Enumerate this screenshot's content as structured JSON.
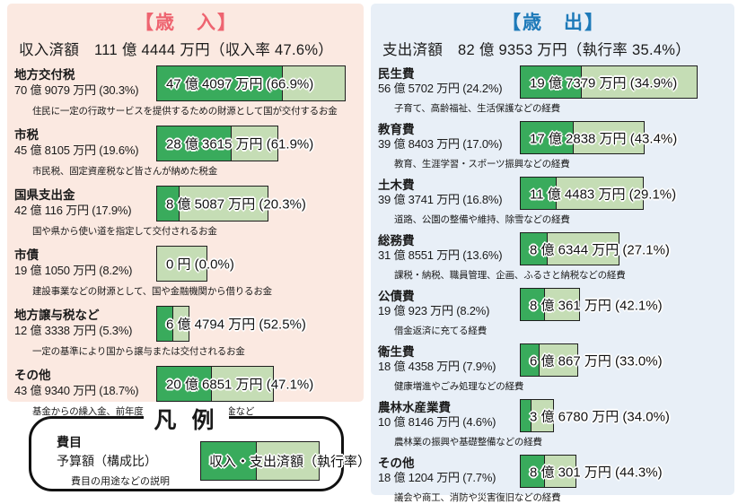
{
  "colors": {
    "revenue_bg": "#fbe9e1",
    "expenditure_bg": "#e8eff7",
    "revenue_title": "#ee6470",
    "expenditure_title": "#1e7ab9",
    "bar_fill": "#39ab5c",
    "bar_rest": "#c5ddb5"
  },
  "revenue": {
    "title": "【歳　入】",
    "summary": "収入済額　111 億 4444 万円（収入率 47.6%）",
    "max_budget_oku": 70.9079,
    "items": [
      {
        "label": "地方交付税",
        "amount": "70 億 9079 万円 (30.3%)",
        "budget_oku": 70.9079,
        "bar_label": "47 億 4097 万円 (66.9%)",
        "rate_pct": 66.9,
        "desc": "住民に一定の行政サービスを提供するための財源として国が交付するお金"
      },
      {
        "label": "市税",
        "amount": "45 億 8105 万円 (19.6%)",
        "budget_oku": 45.8105,
        "bar_label": "28 億 3615 万円 (61.9%)",
        "rate_pct": 61.9,
        "desc": "市民税、固定資産税など皆さんが納めた税金"
      },
      {
        "label": "国県支出金",
        "amount": "42 億 116 万円 (17.9%)",
        "budget_oku": 42.0116,
        "bar_label": "8 億 5087 万円 (20.3%)",
        "rate_pct": 20.3,
        "desc": "国や県から使い道を指定して交付されるお金"
      },
      {
        "label": "市債",
        "amount": "19 億 1050 万円 (8.2%)",
        "budget_oku": 19.105,
        "bar_label": "0 円 (0.0%)",
        "rate_pct": 0,
        "desc": "建設事業などの財源として、国や金融機関から借りるお金"
      },
      {
        "label": "地方譲与税など",
        "amount": "12 億 3338 万円 (5.3%)",
        "budget_oku": 12.3338,
        "bar_label": "6 億 4794 万円 (52.5%)",
        "rate_pct": 52.5,
        "desc": "一定の基準により国から譲与または交付されるお金"
      },
      {
        "label": "その他",
        "amount": "43 億 9340 万円 (18.7%)",
        "budget_oku": 43.934,
        "bar_label": "20 億 6851 万円 (47.1%)",
        "rate_pct": 47.1,
        "desc": "基金からの繰入金、前年度からの繰越金、寄附金など"
      }
    ]
  },
  "expenditure": {
    "title": "【歳　出】",
    "summary": "支出済額　82 億 9353 万円（執行率 35.4%）",
    "max_budget_oku": 56.5702,
    "items": [
      {
        "label": "民生費",
        "amount": "56 億 5702 万円 (24.2%)",
        "budget_oku": 56.5702,
        "bar_label": "19 億 7379 万円 (34.9%)",
        "rate_pct": 34.9,
        "desc": "子育て、高齢福祉、生活保護などの経費"
      },
      {
        "label": "教育費",
        "amount": "39 億 8403 万円 (17.0%)",
        "budget_oku": 39.8403,
        "bar_label": "17 億 2838 万円 (43.4%)",
        "rate_pct": 43.4,
        "desc": "教育、生涯学習・スポーツ振興などの経費"
      },
      {
        "label": "土木費",
        "amount": "39 億 3741 万円 (16.8%)",
        "budget_oku": 39.3741,
        "bar_label": "11 億 4483 万円 (29.1%)",
        "rate_pct": 29.1,
        "desc": "道路、公園の整備や維持、除雪などの経費"
      },
      {
        "label": "総務費",
        "amount": "31 億 8551 万円 (13.6%)",
        "budget_oku": 31.8551,
        "bar_label": "8 億 6344 万円 (27.1%)",
        "rate_pct": 27.1,
        "desc": "課税・納税、職員管理、企画、ふるさと納税などの経費"
      },
      {
        "label": "公債費",
        "amount": "19 億 923 万円 (8.2%)",
        "budget_oku": 19.0923,
        "bar_label": "8 億 361 万円 (42.1%)",
        "rate_pct": 42.1,
        "desc": "借金返済に充てる経費"
      },
      {
        "label": "衛生費",
        "amount": "18 億 4358 万円 (7.9%)",
        "budget_oku": 18.4358,
        "bar_label": "6 億 867 万円 (33.0%)",
        "rate_pct": 33.0,
        "desc": "健康増進やごみ処理などの経費"
      },
      {
        "label": "農林水産業費",
        "amount": "10 億 8146 万円 (4.6%)",
        "budget_oku": 10.8146,
        "bar_label": "3 億 6780 万円 (34.0%)",
        "rate_pct": 34.0,
        "desc": "農林業の振興や基礎整備などの経費"
      },
      {
        "label": "その他",
        "amount": "18 億 1204 万円 (7.7%)",
        "budget_oku": 18.1204,
        "bar_label": "8 億 301 万円 (44.3%)",
        "rate_pct": 44.3,
        "desc": "議会や商工、消防や災害復旧などの経費"
      }
    ]
  },
  "legend": {
    "title": "凡 例",
    "item_label": "費目",
    "budget_label": "予算額（構成比）",
    "desc_label": "費目の用途などの説明",
    "bar_label": "収入・支出済額（執行率）"
  },
  "chart_data": [
    {
      "type": "bar",
      "title": "歳入",
      "subtitle": "収入済額 111億4444万円（収入率47.6%）",
      "categories": [
        "地方交付税",
        "市税",
        "国県支出金",
        "市債",
        "地方譲与税など",
        "その他"
      ],
      "series": [
        {
          "name": "予算額(万円)",
          "values": [
            709079,
            458105,
            420116,
            191050,
            123338,
            439340
          ]
        },
        {
          "name": "収入済額(万円)",
          "values": [
            474097,
            283615,
            85087,
            0,
            64794,
            206851
          ]
        },
        {
          "name": "収入率(%)",
          "values": [
            66.9,
            61.9,
            20.3,
            0.0,
            52.5,
            47.1
          ]
        },
        {
          "name": "構成比(%)",
          "values": [
            30.3,
            19.6,
            17.9,
            8.2,
            5.3,
            18.7
          ]
        }
      ],
      "layout": "horizontal stacked bars, bar length proportional to budget, dark segment = collected share, legend none, grid off"
    },
    {
      "type": "bar",
      "title": "歳出",
      "subtitle": "支出済額 82億9353万円（執行率35.4%）",
      "categories": [
        "民生費",
        "教育費",
        "土木費",
        "総務費",
        "公債費",
        "衛生費",
        "農林水産業費",
        "その他"
      ],
      "series": [
        {
          "name": "予算額(万円)",
          "values": [
            565702,
            398403,
            393741,
            318551,
            190923,
            184358,
            108146,
            181204
          ]
        },
        {
          "name": "支出済額(万円)",
          "values": [
            197379,
            172838,
            114483,
            86344,
            80361,
            60867,
            36780,
            80301
          ]
        },
        {
          "name": "執行率(%)",
          "values": [
            34.9,
            43.4,
            29.1,
            27.1,
            42.1,
            33.0,
            34.0,
            44.3
          ]
        },
        {
          "name": "構成比(%)",
          "values": [
            24.2,
            17.0,
            16.8,
            13.6,
            8.2,
            7.9,
            4.6,
            7.7
          ]
        }
      ],
      "layout": "horizontal stacked bars, bar length proportional to budget, dark segment = spent share, legend none, grid off"
    }
  ]
}
